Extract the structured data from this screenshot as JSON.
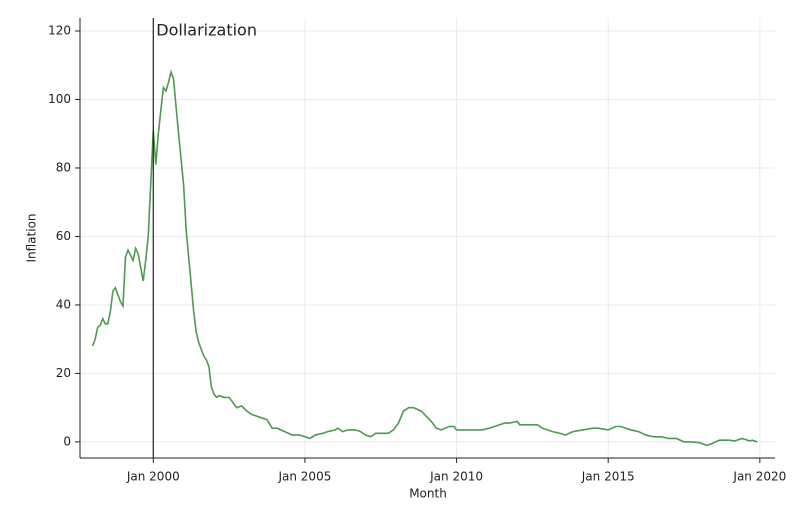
{
  "chart_data": {
    "type": "line",
    "x_label": "Month",
    "y_label": "Inflation",
    "x": [
      "1998-01",
      "1998-02",
      "1998-03",
      "1998-04",
      "1998-05",
      "1998-06",
      "1998-07",
      "1998-08",
      "1998-09",
      "1998-10",
      "1998-11",
      "1998-12",
      "1999-01",
      "1999-02",
      "1999-03",
      "1999-05",
      "1999-06",
      "1999-07",
      "1999-09",
      "1999-10",
      "1999-11",
      "2000-01",
      "2000-02",
      "2000-03",
      "2000-04",
      "2000-05",
      "2000-06",
      "2000-07",
      "2000-08",
      "2000-09",
      "2000-10",
      "2000-11",
      "2001-01",
      "2001-02",
      "2001-04",
      "2001-05",
      "2001-06",
      "2001-07",
      "2001-08",
      "2001-09",
      "2001-10",
      "2001-11",
      "2001-12",
      "2002-01",
      "2002-02",
      "2002-03",
      "2002-05",
      "2002-07",
      "2002-09",
      "2002-10",
      "2002-12",
      "2003-02",
      "2003-04",
      "2003-06",
      "2003-08",
      "2003-10",
      "2003-12",
      "2004-02",
      "2004-05",
      "2004-08",
      "2004-11",
      "2005-01",
      "2005-03",
      "2005-05",
      "2005-08",
      "2005-10",
      "2006-01",
      "2006-02",
      "2006-04",
      "2006-06",
      "2006-09",
      "2006-11",
      "2007-01",
      "2007-03",
      "2007-05",
      "2007-08",
      "2007-10",
      "2007-12",
      "2008-02",
      "2008-04",
      "2008-06",
      "2008-08",
      "2008-11",
      "2009-01",
      "2009-03",
      "2009-05",
      "2009-07",
      "2009-10",
      "2009-12",
      "2010-01",
      "2010-04",
      "2010-06",
      "2010-08",
      "2010-11",
      "2011-02",
      "2011-04",
      "2011-08",
      "2011-10",
      "2012-01",
      "2012-02",
      "2012-06",
      "2012-09",
      "2012-11",
      "2013-03",
      "2013-06",
      "2013-08",
      "2013-11",
      "2014-03",
      "2014-07",
      "2014-09",
      "2015-01",
      "2015-04",
      "2015-06",
      "2015-08",
      "2015-10",
      "2016-01",
      "2016-04",
      "2016-07",
      "2016-10",
      "2017-01",
      "2017-04",
      "2017-07",
      "2017-10",
      "2018-01",
      "2018-04",
      "2018-06",
      "2018-09",
      "2019-01",
      "2019-03",
      "2019-06",
      "2019-09",
      "2019-10",
      "2019-12"
    ],
    "series": [
      {
        "name": "Inflation",
        "color": "#4e9a4e",
        "values": [
          28,
          30,
          33.5,
          34,
          36,
          34.5,
          34.5,
          38,
          44,
          45,
          43,
          41,
          39.7,
          54,
          56,
          53,
          56.5,
          55,
          47,
          53,
          60,
          91,
          81,
          90,
          97,
          103.5,
          102.5,
          105,
          108,
          106,
          98,
          90,
          75,
          62,
          46,
          38,
          32,
          29,
          27,
          25,
          24,
          22,
          16,
          14,
          13,
          13.5,
          13,
          13,
          11,
          10,
          10.5,
          9,
          8,
          7.5,
          7,
          6.5,
          4,
          4,
          3,
          2,
          2,
          1.5,
          1,
          2,
          2.5,
          3,
          3.5,
          4,
          3,
          3.5,
          3.5,
          3,
          2,
          1.5,
          2.5,
          2.5,
          2.5,
          3.5,
          5.5,
          9,
          10,
          10,
          9,
          7.5,
          6,
          4,
          3.5,
          4.5,
          4.5,
          3.5,
          3.5,
          3.5,
          3.5,
          3.5,
          4,
          4.5,
          5.5,
          5.5,
          6,
          5,
          5,
          5,
          4,
          3,
          2.5,
          2,
          3,
          3.5,
          4,
          4,
          3.5,
          4.5,
          4.5,
          4,
          3.5,
          3,
          2,
          1.5,
          1.5,
          1,
          1,
          0,
          0,
          -0.2,
          -1,
          -0.5,
          0.5,
          0.5,
          0.3,
          1,
          0.3,
          0.5,
          0
        ]
      }
    ],
    "xlim": [
      "1997-08",
      "2020-07"
    ],
    "xticks": [
      {
        "value": "2000-01",
        "label": "Jan 2000"
      },
      {
        "value": "2005-01",
        "label": "Jan 2005"
      },
      {
        "value": "2010-01",
        "label": "Jan 2010"
      },
      {
        "value": "2015-01",
        "label": "Jan 2015"
      },
      {
        "value": "2020-01",
        "label": "Jan 2020"
      }
    ],
    "ylim": [
      -4.7,
      123.8
    ],
    "yticks": [
      0,
      20,
      40,
      60,
      80,
      100,
      120
    ],
    "grid": true,
    "annotations": [
      {
        "x": "2000-01",
        "text": "Dollarization"
      }
    ]
  }
}
